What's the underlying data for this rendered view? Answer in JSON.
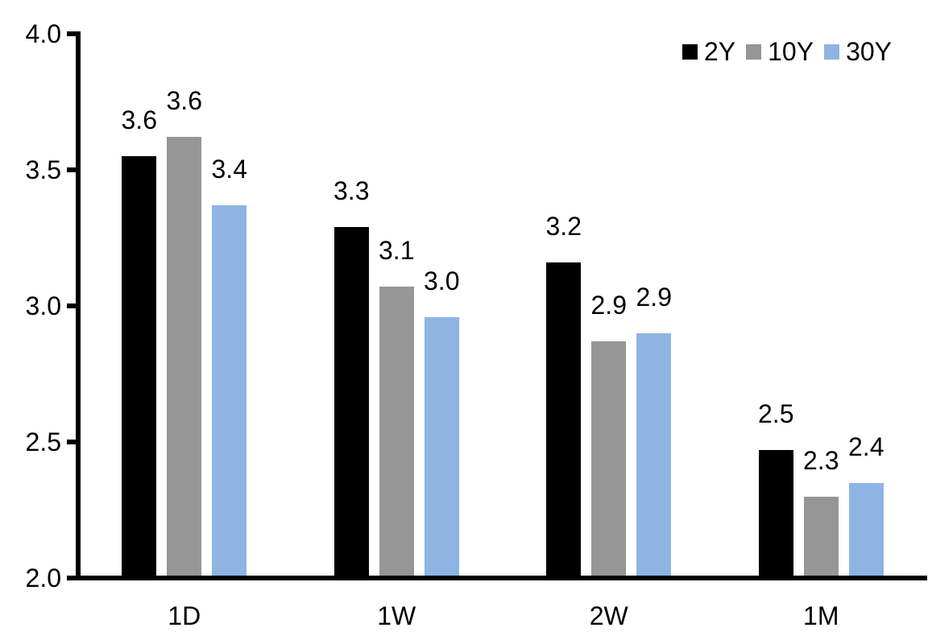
{
  "chart_data": {
    "type": "bar",
    "title": "",
    "xlabel": "",
    "ylabel": "",
    "background": "#FFFFFF",
    "axis_color": "#000000",
    "text_color": "#000000",
    "grid": false,
    "legend_position": "top-right",
    "ylim": [
      2.0,
      4.0
    ],
    "yticks": [
      {
        "value": 2.0,
        "label": "2.0"
      },
      {
        "value": 2.5,
        "label": "2.5"
      },
      {
        "value": 3.0,
        "label": "3.0"
      },
      {
        "value": 3.5,
        "label": "3.5"
      },
      {
        "value": 4.0,
        "label": "4.0"
      }
    ],
    "categories": [
      "1D",
      "1W",
      "2W",
      "1M"
    ],
    "series": [
      {
        "name": "2Y",
        "color": "#000000",
        "values": [
          3.55,
          3.29,
          3.16,
          2.47
        ],
        "labels": [
          "3.6",
          "3.3",
          "3.2",
          "2.5"
        ]
      },
      {
        "name": "10Y",
        "color": "#969696",
        "values": [
          3.62,
          3.07,
          2.87,
          2.3
        ],
        "labels": [
          "3.6",
          "3.1",
          "2.9",
          "2.3"
        ]
      },
      {
        "name": "30Y",
        "color": "#8EB4E3",
        "values": [
          3.37,
          2.96,
          2.9,
          2.35
        ],
        "labels": [
          "3.4",
          "3.0",
          "2.9",
          "2.4"
        ]
      }
    ]
  }
}
